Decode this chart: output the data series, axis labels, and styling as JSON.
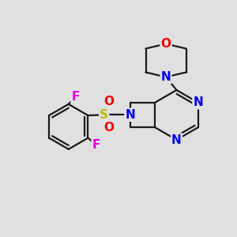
{
  "background_color": "#e0e0e0",
  "bond_color": "#1a1a1a",
  "atom_colors": {
    "N": "#0000ee",
    "O": "#ee0000",
    "S": "#bbbb00",
    "F": "#dd00dd",
    "C": "#1a1a1a"
  },
  "bond_lw": 1.6,
  "font_size": 10
}
